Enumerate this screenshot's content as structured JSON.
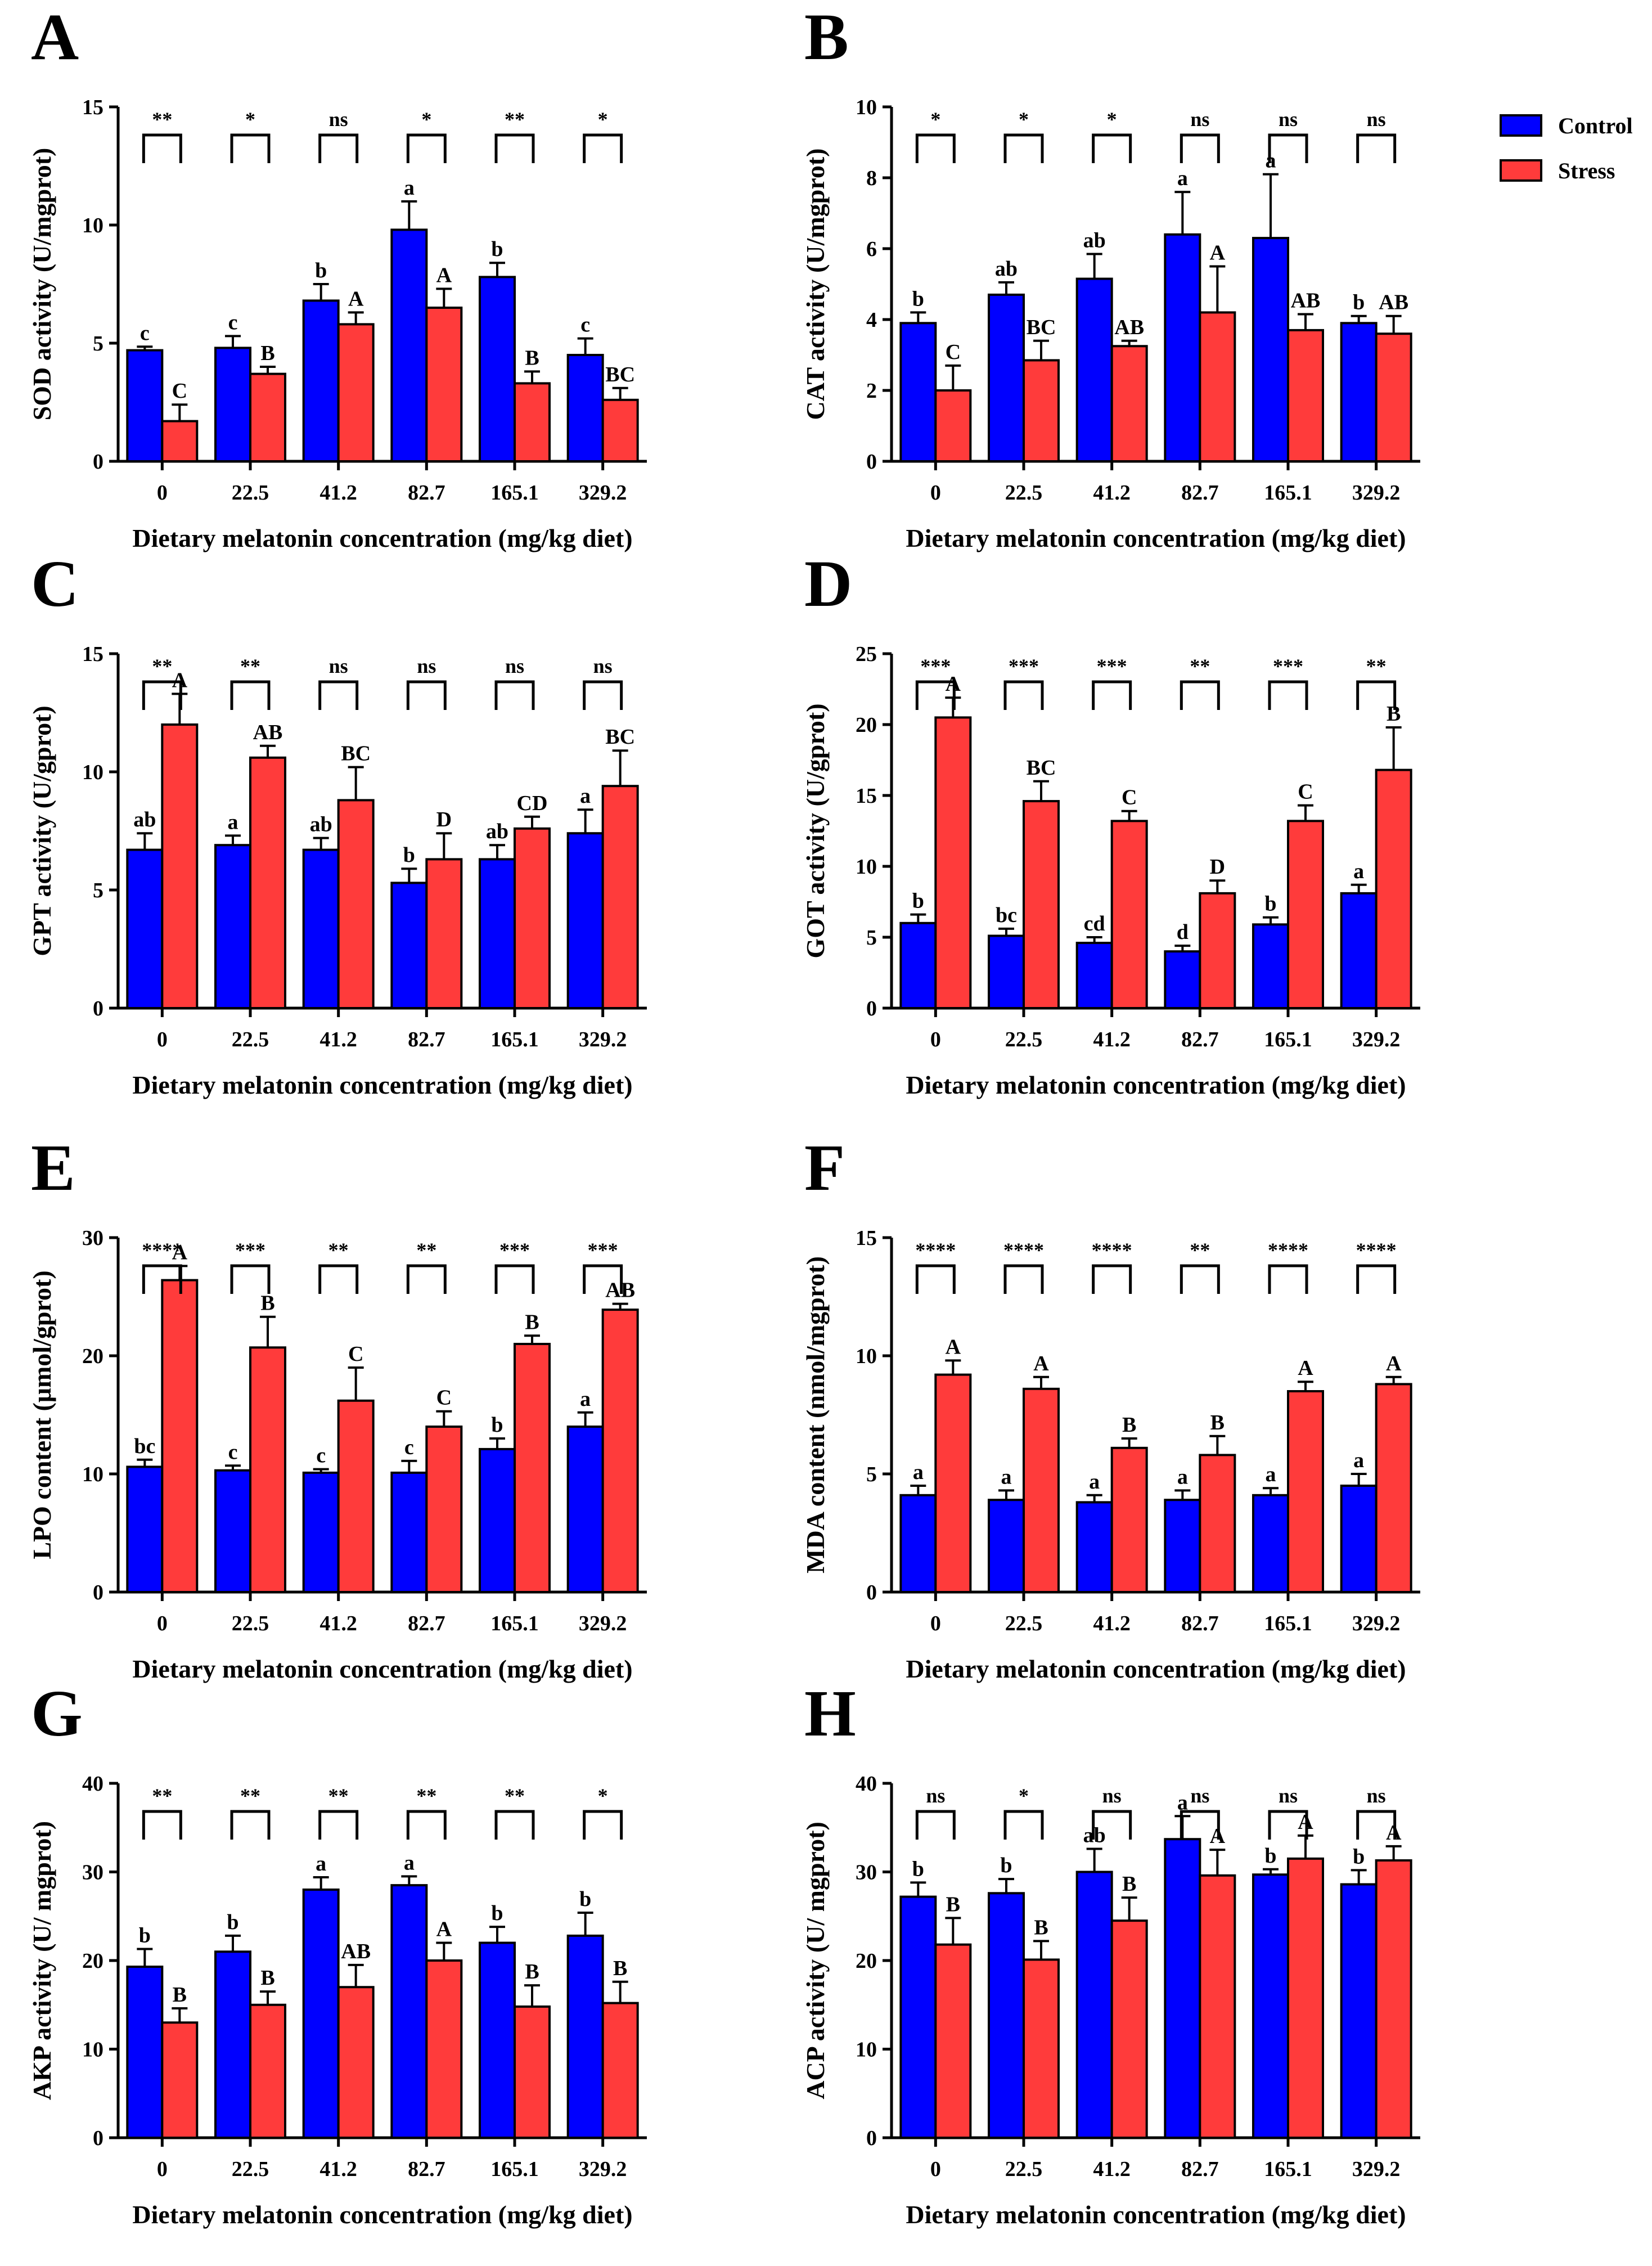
{
  "legend": {
    "items": [
      {
        "label": "Control",
        "color": "#0000ff"
      },
      {
        "label": "Stress",
        "color": "#ff3b3b"
      }
    ]
  },
  "colors": {
    "control": "#0000ff",
    "stress": "#ff3b3b",
    "axis": "#000000"
  },
  "chart_data": [
    {
      "panel": "A",
      "type": "bar",
      "ylabel": "SOD activity (U/mgprot)",
      "xlabel": "Dietary melatonin concentration (mg/kg diet)",
      "categories": [
        "0",
        "22.5",
        "41.2",
        "82.7",
        "165.1",
        "329.2"
      ],
      "ylim": [
        0,
        15
      ],
      "yticks": [
        "0",
        "5",
        "10",
        "15"
      ],
      "series": [
        {
          "name": "Control",
          "values": [
            4.7,
            4.8,
            6.8,
            9.8,
            7.8,
            4.5
          ],
          "errors": [
            0.15,
            0.5,
            0.7,
            1.2,
            0.6,
            0.7
          ],
          "letters": [
            "c",
            "c",
            "b",
            "a",
            "b",
            "c"
          ]
        },
        {
          "name": "Stress",
          "values": [
            1.7,
            3.7,
            5.8,
            6.5,
            3.3,
            2.6
          ],
          "errors": [
            0.7,
            0.3,
            0.5,
            0.8,
            0.5,
            0.5
          ],
          "letters": [
            "C",
            "B",
            "A",
            "A",
            "B",
            "BC"
          ]
        }
      ],
      "significance": [
        "**",
        "*",
        "ns",
        "*",
        "**",
        "*"
      ]
    },
    {
      "panel": "B",
      "type": "bar",
      "ylabel": "CAT activity (U/mgprot)",
      "xlabel": "Dietary melatonin concentration (mg/kg diet)",
      "categories": [
        "0",
        "22.5",
        "41.2",
        "82.7",
        "165.1",
        "329.2"
      ],
      "ylim": [
        0,
        10
      ],
      "yticks": [
        "0",
        "2",
        "4",
        "6",
        "8",
        "10"
      ],
      "series": [
        {
          "name": "Control",
          "values": [
            3.9,
            4.7,
            5.15,
            6.4,
            6.3,
            3.9
          ],
          "errors": [
            0.3,
            0.35,
            0.7,
            1.2,
            1.8,
            0.2
          ],
          "letters": [
            "b",
            "ab",
            "ab",
            "a",
            "a",
            "b"
          ]
        },
        {
          "name": "Stress",
          "values": [
            2.0,
            2.85,
            3.25,
            4.2,
            3.7,
            3.6
          ],
          "errors": [
            0.7,
            0.55,
            0.15,
            1.3,
            0.45,
            0.5
          ],
          "letters": [
            "C",
            "BC",
            "AB",
            "A",
            "AB",
            "AB"
          ]
        }
      ],
      "significance": [
        "*",
        "*",
        "*",
        "ns",
        "ns",
        "ns"
      ]
    },
    {
      "panel": "C",
      "type": "bar",
      "ylabel": "GPT activity (U/gprot)",
      "xlabel": "Dietary melatonin concentration (mg/kg diet)",
      "categories": [
        "0",
        "22.5",
        "41.2",
        "82.7",
        "165.1",
        "329.2"
      ],
      "ylim": [
        0,
        15
      ],
      "yticks": [
        "0",
        "5",
        "10",
        "15"
      ],
      "series": [
        {
          "name": "Control",
          "values": [
            6.7,
            6.9,
            6.7,
            5.3,
            6.3,
            7.4
          ],
          "errors": [
            0.7,
            0.4,
            0.5,
            0.6,
            0.6,
            1.0
          ],
          "letters": [
            "ab",
            "a",
            "ab",
            "b",
            "ab",
            "a"
          ]
        },
        {
          "name": "Stress",
          "values": [
            12.0,
            10.6,
            8.8,
            6.3,
            7.6,
            9.4
          ],
          "errors": [
            1.3,
            0.5,
            1.4,
            1.1,
            0.5,
            1.5
          ],
          "letters": [
            "A",
            "AB",
            "BC",
            "D",
            "CD",
            "BC"
          ]
        }
      ],
      "significance": [
        "**",
        "**",
        "ns",
        "ns",
        "ns",
        "ns"
      ]
    },
    {
      "panel": "D",
      "type": "bar",
      "ylabel": "GOT activity (U/gprot)",
      "xlabel": "Dietary melatonin concentration (mg/kg diet)",
      "categories": [
        "0",
        "22.5",
        "41.2",
        "82.7",
        "165.1",
        "329.2"
      ],
      "ylim": [
        0,
        25
      ],
      "yticks": [
        "0",
        "5",
        "10",
        "15",
        "20",
        "25"
      ],
      "series": [
        {
          "name": "Control",
          "values": [
            6.0,
            5.1,
            4.6,
            4.0,
            5.9,
            8.1
          ],
          "errors": [
            0.6,
            0.5,
            0.4,
            0.4,
            0.5,
            0.6
          ],
          "letters": [
            "b",
            "bc",
            "cd",
            "d",
            "b",
            "a"
          ]
        },
        {
          "name": "Stress",
          "values": [
            20.5,
            14.6,
            13.2,
            8.1,
            13.2,
            16.8
          ],
          "errors": [
            1.4,
            1.4,
            0.7,
            0.9,
            1.1,
            3.0
          ],
          "letters": [
            "A",
            "BC",
            "C",
            "D",
            "C",
            "B"
          ]
        }
      ],
      "significance": [
        "***",
        "***",
        "***",
        "**",
        "***",
        "**"
      ]
    },
    {
      "panel": "E",
      "type": "bar",
      "ylabel": "LPO content (μmol/gprot)",
      "xlabel": "Dietary melatonin concentration (mg/kg diet)",
      "categories": [
        "0",
        "22.5",
        "41.2",
        "82.7",
        "165.1",
        "329.2"
      ],
      "ylim": [
        0,
        30
      ],
      "yticks": [
        "0",
        "10",
        "20",
        "30"
      ],
      "series": [
        {
          "name": "Control",
          "values": [
            10.6,
            10.3,
            10.1,
            10.1,
            12.1,
            14.0
          ],
          "errors": [
            0.6,
            0.4,
            0.3,
            1.0,
            0.9,
            1.2
          ],
          "letters": [
            "bc",
            "c",
            "c",
            "c",
            "b",
            "a"
          ]
        },
        {
          "name": "Stress",
          "values": [
            26.4,
            20.7,
            16.2,
            14.0,
            21.0,
            23.9
          ],
          "errors": [
            1.2,
            2.6,
            2.8,
            1.3,
            0.7,
            0.5
          ],
          "letters": [
            "A",
            "B",
            "C",
            "C",
            "B",
            "AB"
          ]
        }
      ],
      "significance": [
        "****",
        "***",
        "**",
        "**",
        "***",
        "***"
      ]
    },
    {
      "panel": "F",
      "type": "bar",
      "ylabel": "MDA content (nmol/mgprot)",
      "xlabel": "Dietary melatonin concentration (mg/kg diet)",
      "categories": [
        "0",
        "22.5",
        "41.2",
        "82.7",
        "165.1",
        "329.2"
      ],
      "ylim": [
        0,
        15
      ],
      "yticks": [
        "0",
        "5",
        "10",
        "15"
      ],
      "series": [
        {
          "name": "Control",
          "values": [
            4.1,
            3.9,
            3.8,
            3.9,
            4.1,
            4.5
          ],
          "errors": [
            0.4,
            0.4,
            0.3,
            0.4,
            0.3,
            0.5
          ],
          "letters": [
            "a",
            "a",
            "a",
            "a",
            "a",
            "a"
          ]
        },
        {
          "name": "Stress",
          "values": [
            9.2,
            8.6,
            6.1,
            5.8,
            8.5,
            8.8
          ],
          "errors": [
            0.6,
            0.5,
            0.4,
            0.8,
            0.4,
            0.3
          ],
          "letters": [
            "A",
            "A",
            "B",
            "B",
            "A",
            "A"
          ]
        }
      ],
      "significance": [
        "****",
        "****",
        "****",
        "**",
        "****",
        "****"
      ]
    },
    {
      "panel": "G",
      "type": "bar",
      "ylabel": "AKP activity (U/ mgprot)",
      "xlabel": "Dietary melatonin concentration (mg/kg diet)",
      "categories": [
        "0",
        "22.5",
        "41.2",
        "82.7",
        "165.1",
        "329.2"
      ],
      "ylim": [
        0,
        40
      ],
      "yticks": [
        "0",
        "10",
        "20",
        "30",
        "40"
      ],
      "series": [
        {
          "name": "Control",
          "values": [
            19.3,
            21.0,
            28.0,
            28.5,
            22.0,
            22.8
          ],
          "errors": [
            2.0,
            1.8,
            1.4,
            1.0,
            1.8,
            2.6
          ],
          "letters": [
            "b",
            "b",
            "a",
            "a",
            "b",
            "b"
          ]
        },
        {
          "name": "Stress",
          "values": [
            13.0,
            15.0,
            17.0,
            20.0,
            14.8,
            15.2
          ],
          "errors": [
            1.6,
            1.5,
            2.5,
            2.0,
            2.4,
            2.4
          ],
          "letters": [
            "B",
            "B",
            "AB",
            "A",
            "B",
            "B"
          ]
        }
      ],
      "significance": [
        "**",
        "**",
        "**",
        "**",
        "**",
        "*"
      ]
    },
    {
      "panel": "H",
      "type": "bar",
      "ylabel": "ACP activity (U/ mgprot)",
      "xlabel": "Dietary melatonin concentration (mg/kg diet)",
      "categories": [
        "0",
        "22.5",
        "41.2",
        "82.7",
        "165.1",
        "329.2"
      ],
      "ylim": [
        0,
        40
      ],
      "yticks": [
        "0",
        "10",
        "20",
        "30",
        "40"
      ],
      "series": [
        {
          "name": "Control",
          "values": [
            27.2,
            27.6,
            30.0,
            33.7,
            29.7,
            28.6
          ],
          "errors": [
            1.6,
            1.6,
            2.6,
            2.6,
            0.6,
            1.6
          ],
          "letters": [
            "b",
            "b",
            "ab",
            "a",
            "b",
            "b"
          ]
        },
        {
          "name": "Stress",
          "values": [
            21.8,
            20.1,
            24.5,
            29.6,
            31.5,
            31.3
          ],
          "errors": [
            3.0,
            2.1,
            2.6,
            2.9,
            2.6,
            1.6
          ],
          "letters": [
            "B",
            "B",
            "B",
            "A",
            "A",
            "A"
          ]
        }
      ],
      "significance": [
        "ns",
        "*",
        "ns",
        "ns",
        "ns",
        "ns"
      ]
    }
  ]
}
